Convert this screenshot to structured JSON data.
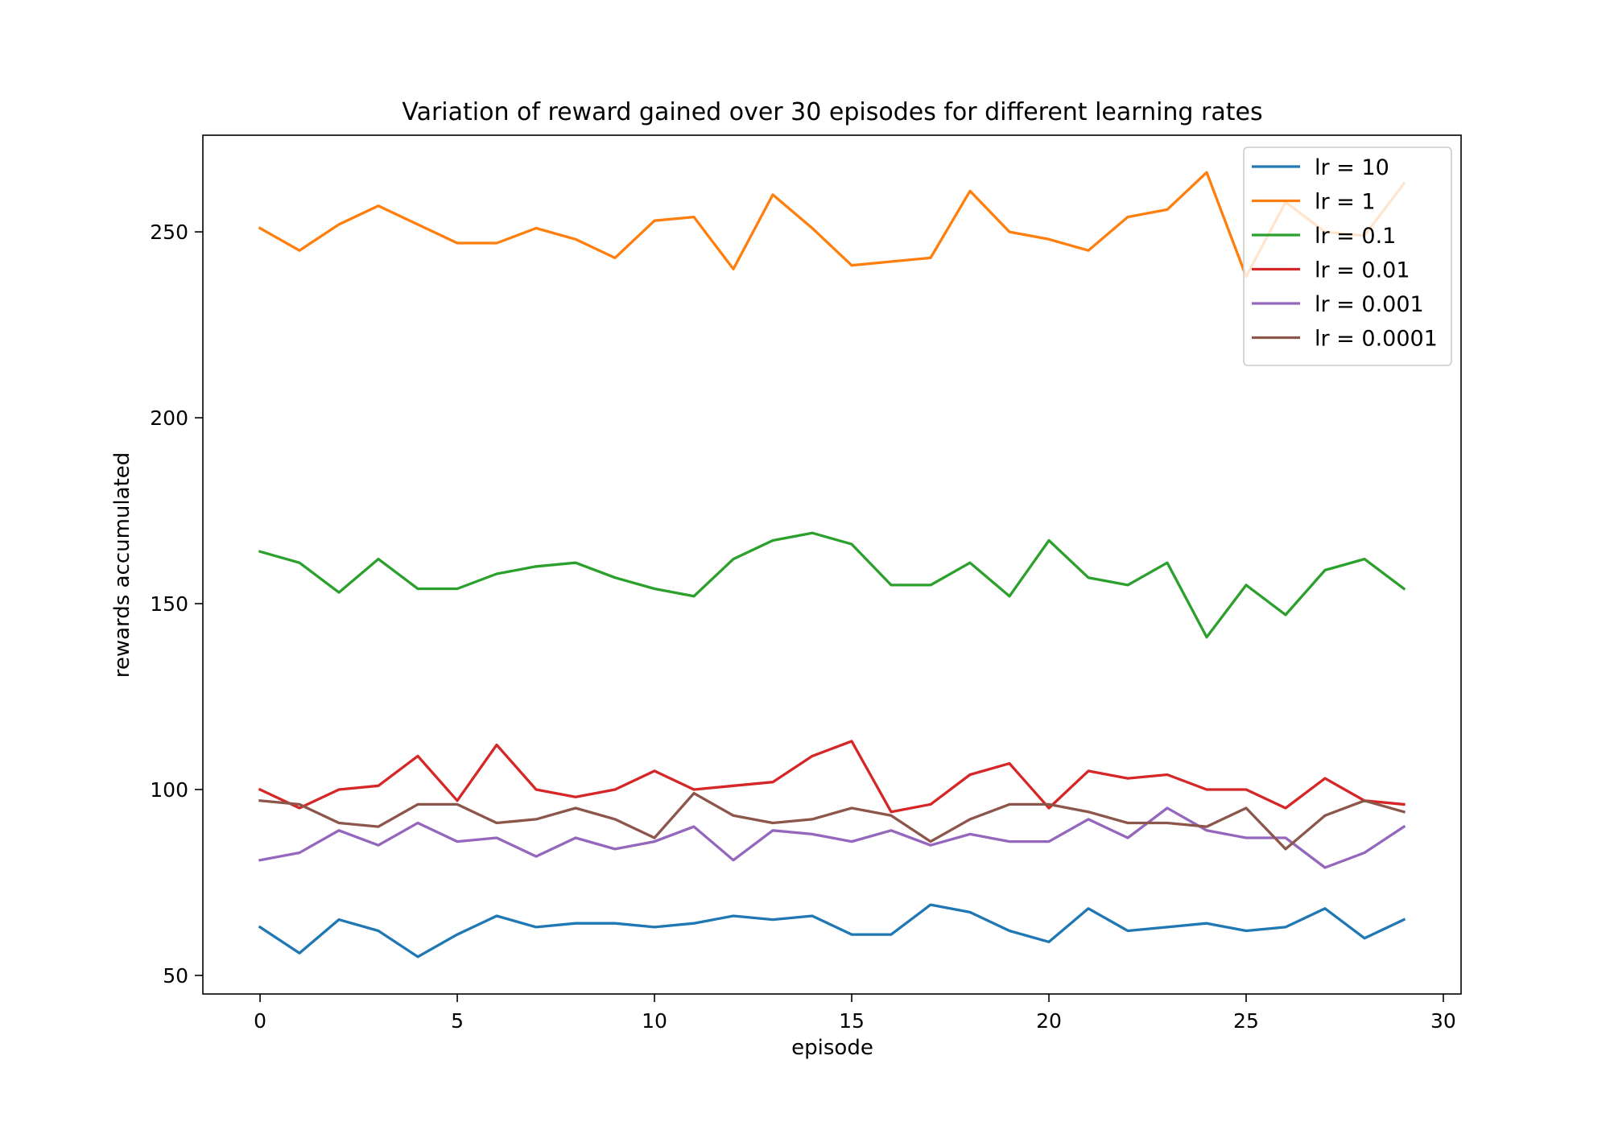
{
  "chart_data": {
    "type": "line",
    "title": "Variation of reward gained over 30 episodes for different learning rates",
    "xlabel": "episode",
    "ylabel": "rewards accumulated",
    "xlim": [
      -1.45,
      30.45
    ],
    "ylim": [
      45,
      276
    ],
    "xticks": [
      0,
      5,
      10,
      15,
      20,
      25,
      30
    ],
    "yticks": [
      50,
      100,
      150,
      200,
      250
    ],
    "grid": false,
    "legend_position": "upper right",
    "x": [
      0,
      1,
      2,
      3,
      4,
      5,
      6,
      7,
      8,
      9,
      10,
      11,
      12,
      13,
      14,
      15,
      16,
      17,
      18,
      19,
      20,
      21,
      22,
      23,
      24,
      25,
      26,
      27,
      28,
      29
    ],
    "series": [
      {
        "name": "lr = 10",
        "color": "#1f77b4",
        "values": [
          63,
          56,
          65,
          62,
          55,
          61,
          66,
          63,
          64,
          64,
          63,
          64,
          66,
          65,
          66,
          61,
          61,
          69,
          67,
          62,
          59,
          68,
          62,
          63,
          64,
          62,
          63,
          68,
          60,
          65
        ]
      },
      {
        "name": "lr = 1",
        "color": "#ff7f0e",
        "values": [
          251,
          245,
          252,
          257,
          252,
          247,
          247,
          251,
          248,
          243,
          253,
          254,
          240,
          260,
          251,
          241,
          242,
          243,
          261,
          250,
          248,
          245,
          254,
          256,
          266,
          238,
          258,
          250,
          249,
          263
        ]
      },
      {
        "name": "lr = 0.1",
        "color": "#2ca02c",
        "values": [
          164,
          161,
          153,
          162,
          154,
          154,
          158,
          160,
          161,
          157,
          154,
          152,
          162,
          167,
          169,
          166,
          155,
          155,
          161,
          152,
          167,
          157,
          155,
          161,
          141,
          155,
          147,
          159,
          162,
          154
        ]
      },
      {
        "name": "lr = 0.01",
        "color": "#d62728",
        "values": [
          100,
          95,
          100,
          101,
          109,
          97,
          112,
          100,
          98,
          100,
          105,
          100,
          101,
          102,
          109,
          113,
          94,
          96,
          104,
          107,
          95,
          105,
          103,
          104,
          100,
          100,
          95,
          103,
          97,
          96
        ]
      },
      {
        "name": "lr = 0.001",
        "color": "#9467bd",
        "values": [
          81,
          83,
          89,
          85,
          91,
          86,
          87,
          82,
          87,
          84,
          86,
          90,
          81,
          89,
          88,
          86,
          89,
          85,
          88,
          86,
          86,
          92,
          87,
          95,
          89,
          87,
          87,
          79,
          83,
          90
        ]
      },
      {
        "name": "lr = 0.0001",
        "color": "#8c564b",
        "values": [
          97,
          96,
          91,
          90,
          96,
          96,
          91,
          92,
          95,
          92,
          87,
          99,
          93,
          91,
          92,
          95,
          93,
          86,
          92,
          96,
          96,
          94,
          91,
          91,
          90,
          95,
          84,
          93,
          97,
          94
        ]
      }
    ]
  }
}
